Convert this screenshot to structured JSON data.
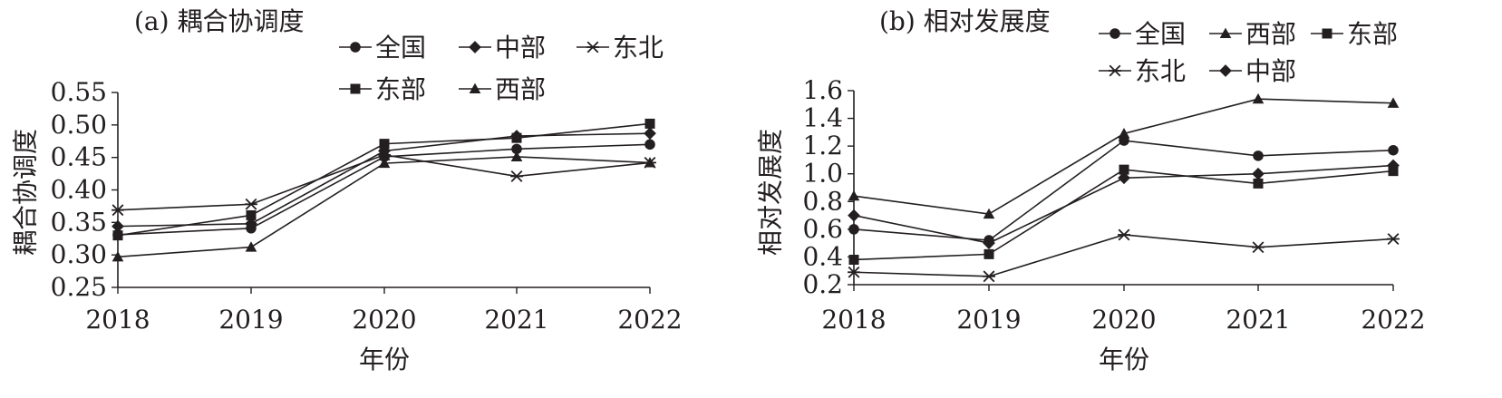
{
  "chart_data": [
    {
      "type": "line",
      "title": "(a) 耦合协调度",
      "xlabel": "年份",
      "ylabel": "耦合协调度",
      "x": [
        "2018",
        "2019",
        "2020",
        "2021",
        "2022"
      ],
      "ylim": [
        0.25,
        0.55
      ],
      "yticks": [
        "0.25",
        "0.30",
        "0.35",
        "0.40",
        "0.45",
        "0.50",
        "0.55"
      ],
      "grid": false,
      "legend_position": "top-center",
      "legend_order": [
        "全国",
        "中部",
        "东北",
        "东部",
        "西部"
      ],
      "series": [
        {
          "name": "全国",
          "marker": "circle",
          "values": [
            0.331,
            0.341,
            0.451,
            0.463,
            0.47
          ]
        },
        {
          "name": "中部",
          "marker": "diamond",
          "values": [
            0.344,
            0.348,
            0.46,
            0.483,
            0.487
          ]
        },
        {
          "name": "东北",
          "marker": "asterisk",
          "values": [
            0.369,
            0.378,
            0.454,
            0.421,
            0.442
          ]
        },
        {
          "name": "东部",
          "marker": "square",
          "values": [
            0.33,
            0.361,
            0.471,
            0.48,
            0.502
          ]
        },
        {
          "name": "西部",
          "marker": "triangle",
          "values": [
            0.297,
            0.312,
            0.441,
            0.451,
            0.442
          ]
        }
      ]
    },
    {
      "type": "line",
      "title": "(b) 相对发展度",
      "xlabel": "年份",
      "ylabel": "相对发展度",
      "x": [
        "2018",
        "2019",
        "2020",
        "2021",
        "2022"
      ],
      "ylim": [
        0.2,
        1.6
      ],
      "yticks": [
        "0.2",
        "0.4",
        "0.6",
        "0.8",
        "1.0",
        "1.2",
        "1.4",
        "1.6"
      ],
      "grid": false,
      "legend_position": "top-right",
      "legend_order": [
        "全国",
        "西部",
        "东部",
        "东北",
        "中部"
      ],
      "series": [
        {
          "name": "全国",
          "marker": "circle",
          "values": [
            0.6,
            0.52,
            1.24,
            1.13,
            1.17
          ]
        },
        {
          "name": "西部",
          "marker": "triangle",
          "values": [
            0.84,
            0.71,
            1.29,
            1.54,
            1.51
          ]
        },
        {
          "name": "东部",
          "marker": "square",
          "values": [
            0.38,
            0.42,
            1.03,
            0.93,
            1.02
          ]
        },
        {
          "name": "东北",
          "marker": "asterisk",
          "values": [
            0.29,
            0.26,
            0.56,
            0.47,
            0.53
          ]
        },
        {
          "name": "中部",
          "marker": "diamond",
          "values": [
            0.7,
            0.5,
            0.97,
            1.0,
            1.06
          ]
        }
      ]
    }
  ]
}
